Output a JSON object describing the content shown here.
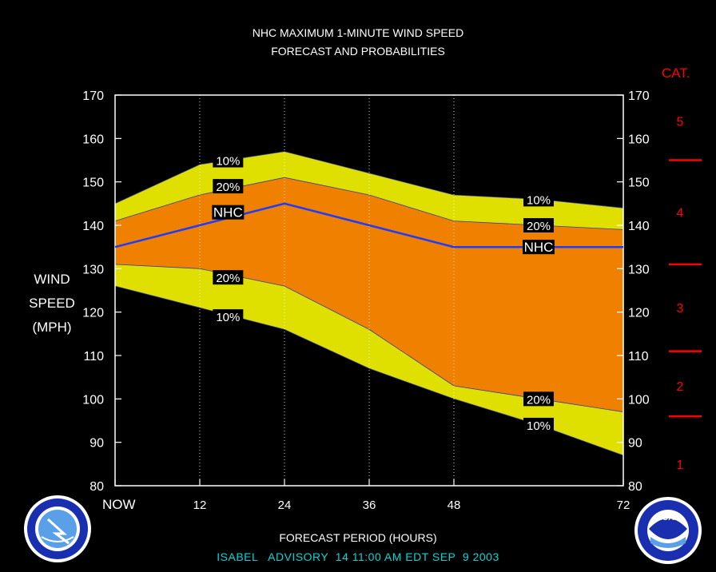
{
  "title_line1": "NHC MAXIMUM 1-MINUTE WIND SPEED",
  "title_line2": "FORECAST AND PROBABILITIES",
  "y_label_lines": [
    "WIND",
    "SPEED",
    "(MPH)"
  ],
  "cat_header": "CAT.",
  "xlabel": "FORECAST PERIOD (HOURS)",
  "footer": "ISABEL   ADVISORY  14 11:00 AM EDT SEP  9 2003",
  "logos": {
    "left": "nws-logo",
    "right": "noaa-logo",
    "right_text": "NOAA"
  },
  "colors": {
    "outer_band": "#e0e000",
    "inner_band": "#f08000",
    "nhc_line": "#1e3cff",
    "category": "#ff0000",
    "footer": "#00d8d8"
  },
  "chart_data": {
    "type": "area",
    "x": [
      0,
      12,
      24,
      36,
      48,
      60,
      72
    ],
    "x_tick_values": [
      0,
      12,
      24,
      36,
      48,
      72
    ],
    "x_tick_labels": [
      "NOW",
      "12",
      "24",
      "36",
      "48",
      "72"
    ],
    "xlim": [
      0,
      72
    ],
    "ylim": [
      80,
      170
    ],
    "y_ticks": [
      80,
      90,
      100,
      110,
      120,
      130,
      140,
      150,
      160,
      170
    ],
    "grid": "vertical-dotted",
    "series": [
      {
        "name": "10%",
        "upper": [
          145,
          154,
          157,
          152,
          147,
          146,
          144
        ],
        "lower": [
          126,
          121,
          116,
          107,
          100,
          94,
          87
        ]
      },
      {
        "name": "20%",
        "upper": [
          141,
          147,
          151,
          147,
          141,
          140,
          139
        ],
        "lower": [
          131,
          130,
          126,
          116,
          103,
          100,
          97
        ]
      },
      {
        "name": "NHC",
        "values": [
          135,
          140,
          145,
          140,
          135,
          135,
          135
        ]
      }
    ],
    "annotations": [
      {
        "text": "10%",
        "x": 16,
        "y": 155
      },
      {
        "text": "20%",
        "x": 16,
        "y": 149
      },
      {
        "text": "NHC",
        "x": 16,
        "y": 143
      },
      {
        "text": "20%",
        "x": 16,
        "y": 128
      },
      {
        "text": "10%",
        "x": 16,
        "y": 119
      },
      {
        "text": "10%",
        "x": 60,
        "y": 146
      },
      {
        "text": "20%",
        "x": 60,
        "y": 140
      },
      {
        "text": "NHC",
        "x": 60,
        "y": 135
      },
      {
        "text": "20%",
        "x": 60,
        "y": 100
      },
      {
        "text": "10%",
        "x": 60,
        "y": 94
      }
    ],
    "categories": [
      {
        "label": "5",
        "y": 164
      },
      {
        "label": "4",
        "y": 143
      },
      {
        "label": "3",
        "y": 121
      },
      {
        "label": "2",
        "y": 103
      },
      {
        "label": "1",
        "y": 85
      }
    ],
    "category_boundaries": [
      155,
      131,
      111,
      96
    ]
  }
}
